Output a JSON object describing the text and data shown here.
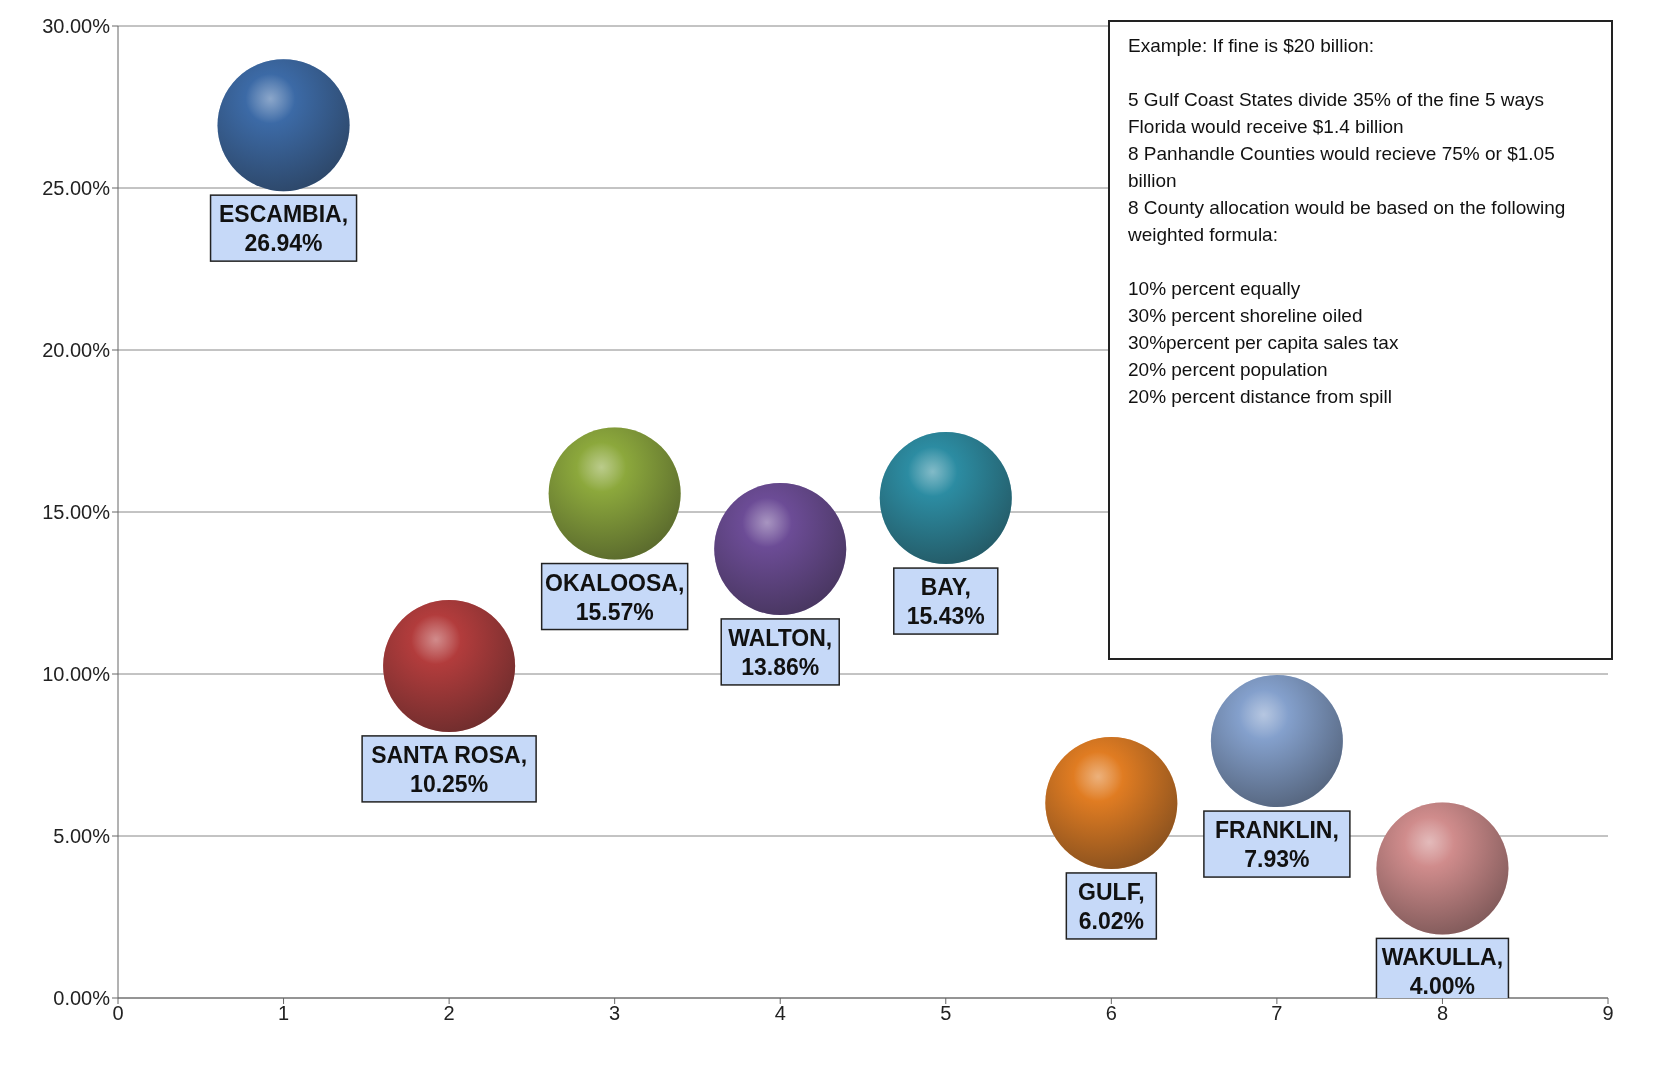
{
  "chart_data": {
    "type": "bubble",
    "x": [
      1,
      2,
      3,
      4,
      5,
      6,
      7,
      8
    ],
    "values": [
      26.94,
      10.25,
      15.57,
      13.86,
      15.43,
      6.02,
      7.93,
      4.0
    ],
    "sizes": [
      1,
      1,
      1,
      1,
      1,
      1,
      1,
      1
    ],
    "colors": [
      "#3c6aa6",
      "#b23c3c",
      "#8ca83c",
      "#6c4c96",
      "#2c8ca2",
      "#e07c22",
      "#84a0cc",
      "#d08c8c"
    ],
    "value_labels": [
      "ESCAMBIA, 26.94%",
      "SANTA ROSA, 10.25%",
      "OKALOOSA, 15.57%",
      "WALTON, 13.86%",
      "BAY, 15.43%",
      "GULF, 6.02%",
      "FRANKLIN, 7.93%",
      "WAKULLA, 4.00%"
    ],
    "xlim": [
      0,
      9
    ],
    "xticks": [
      0,
      1,
      2,
      3,
      4,
      5,
      6,
      7,
      8,
      9
    ],
    "ylim": [
      0,
      30
    ],
    "yticks": [
      {
        "value": 0,
        "label": "0.00%"
      },
      {
        "value": 5,
        "label": "5.00%"
      },
      {
        "value": 10,
        "label": "10.00%"
      },
      {
        "value": 15,
        "label": "15.00%"
      },
      {
        "value": 20,
        "label": "20.00%"
      },
      {
        "value": 25,
        "label": "25.00%"
      },
      {
        "value": 30,
        "label": "30.00%"
      }
    ],
    "grid": "y",
    "legend": false,
    "annotations": [
      "Example: If fine is $20 billion:",
      "5 Gulf Coast States divide 35% of the fine 5 ways",
      "Florida would receive $1.4 billion",
      "8 Panhandle Counties would recieve 75% or $1.05 billion",
      "8 County allocation would be based on the following  weighted formula:",
      "10% percent equally",
      "30%  percent shoreline oiled",
      "30%percent per capita sales tax",
      "20% percent population",
      "20% percent distance from spill"
    ]
  }
}
